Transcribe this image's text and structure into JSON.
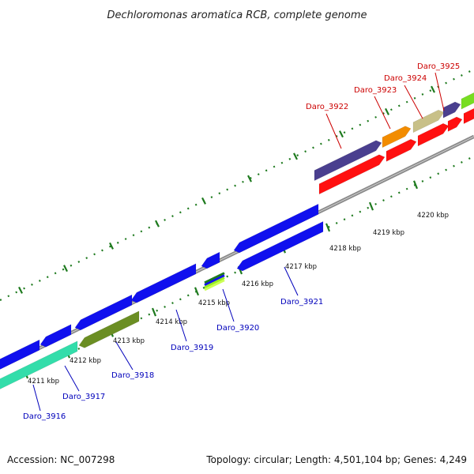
{
  "title": "Dechloromonas aromatica RCB, complete genome",
  "footer": {
    "accession": "Accession: NC_007298",
    "summary": "Topology: circular; Length: 4,501,104 bp; Genes: 4,249"
  },
  "colors": {
    "backbone": "#8a8a8a",
    "tick": "#1e7a1e",
    "forward_label": "#cc0000",
    "reverse_label": "#0000bb"
  },
  "ticks": [
    "4211 kbp",
    "4212 kbp",
    "4213 kbp",
    "4214 kbp",
    "4215 kbp",
    "4216 kbp",
    "4217 kbp",
    "4218 kbp",
    "4219 kbp",
    "4220 kbp"
  ],
  "forward_genes": [
    {
      "name": "Daro_3922",
      "color": "#4a3f8f"
    },
    {
      "name": "Daro_3923",
      "color": "#f28c00"
    },
    {
      "name": "Daro_3924",
      "color": "#c8c088"
    },
    {
      "name": "Daro_3925",
      "color": "#4a3f8f"
    }
  ],
  "reverse_genes": [
    {
      "name": "Daro_3916",
      "color": "#33ddaa"
    },
    {
      "name": "Daro_3917",
      "color": "#1010ee"
    },
    {
      "name": "Daro_3918",
      "color": "#6b8e23"
    },
    {
      "name": "Daro_3919",
      "color": "#1010ee"
    },
    {
      "name": "Daro_3920",
      "color": "#1010ee"
    },
    {
      "name": "Daro_3921",
      "color": "#1010ee"
    }
  ]
}
